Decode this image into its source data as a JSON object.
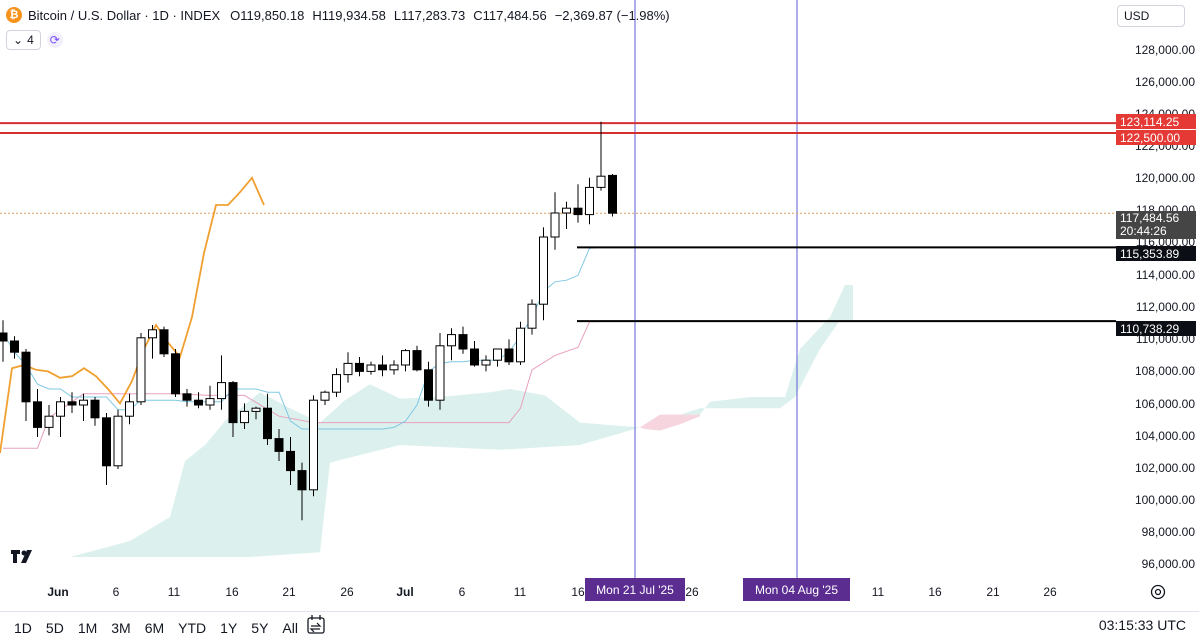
{
  "header": {
    "symbol": "Bitcoin / U.S. Dollar · 1D · INDEX",
    "open": "O119,850.18",
    "high": "H119,934.58",
    "low": "L117,283.73",
    "close": "C117,484.56",
    "change": "−2,369.87 (−1.98%)",
    "logo_char": "₿"
  },
  "indicators": {
    "count": "4",
    "chevron": "⌄"
  },
  "currency": "USD",
  "price_axis": {
    "labels": [
      "128,000.00",
      "126,000.00",
      "124,000.00",
      "122,000.00",
      "120,000.00",
      "118,000.00",
      "116,000.00",
      "114,000.00",
      "112,000.00",
      "110,000.00",
      "108,000.00",
      "106,000.00",
      "104,000.00",
      "102,000.00",
      "100,000.00",
      "98,000.00",
      "96,000.00"
    ],
    "tags": {
      "red_top": "123,114.25",
      "red_bottom": "122,500.00",
      "last_price": "117,484.56",
      "countdown": "20:44:26",
      "black_top": "115,353.89",
      "black_bottom": "110,738.29"
    }
  },
  "time_axis": {
    "labels": [
      "Jun",
      "6",
      "11",
      "16",
      "21",
      "26",
      "Jul",
      "6",
      "11",
      "16",
      "26",
      "11",
      "16",
      "21",
      "26"
    ],
    "bold": [
      "Jun",
      "Jul"
    ],
    "tag_1": "Mon 21 Jul '25",
    "tag_2": "Mon 04 Aug '25"
  },
  "bottom_bar": {
    "ranges": [
      "1D",
      "5D",
      "1M",
      "3M",
      "6M",
      "YTD",
      "1Y",
      "5Y",
      "All"
    ],
    "clock": "03:15:33 UTC"
  },
  "colors": {
    "up_candle": "#ffffff",
    "down_candle": "#000000",
    "red_lines": "#d32f2f",
    "orange_line": "#f0a030",
    "tenkan": "#7ec8e3",
    "kijun": "#e8a0c0",
    "cloud_green": "#d8efeb",
    "cloud_red": "#f6d5df",
    "vline": "#5b5bd6",
    "date_tag": "#5c2d91"
  },
  "chart_data": {
    "type": "candlestick",
    "ylim": [
      95000,
      130000
    ],
    "candles": [
      {
        "o": 110000,
        "h": 110800,
        "l": 108200,
        "c": 109500
      },
      {
        "o": 109500,
        "h": 109800,
        "l": 108400,
        "c": 108800
      },
      {
        "o": 108800,
        "h": 109000,
        "l": 104500,
        "c": 105700
      },
      {
        "o": 105700,
        "h": 106500,
        "l": 103500,
        "c": 104100
      },
      {
        "o": 104100,
        "h": 105500,
        "l": 103600,
        "c": 104800
      },
      {
        "o": 104800,
        "h": 106000,
        "l": 103500,
        "c": 105700
      },
      {
        "o": 105700,
        "h": 106300,
        "l": 105000,
        "c": 105500
      },
      {
        "o": 105500,
        "h": 106200,
        "l": 104500,
        "c": 105800
      },
      {
        "o": 105800,
        "h": 106000,
        "l": 104200,
        "c": 104700
      },
      {
        "o": 104700,
        "h": 105000,
        "l": 100500,
        "c": 101700
      },
      {
        "o": 101700,
        "h": 105200,
        "l": 101500,
        "c": 104800
      },
      {
        "o": 104800,
        "h": 106200,
        "l": 104300,
        "c": 105700
      },
      {
        "o": 105700,
        "h": 110000,
        "l": 105500,
        "c": 109700
      },
      {
        "o": 109700,
        "h": 110500,
        "l": 108400,
        "c": 110200
      },
      {
        "o": 110200,
        "h": 110400,
        "l": 108500,
        "c": 108700
      },
      {
        "o": 108700,
        "h": 109000,
        "l": 106000,
        "c": 106200
      },
      {
        "o": 106200,
        "h": 106500,
        "l": 105400,
        "c": 105800
      },
      {
        "o": 105800,
        "h": 106300,
        "l": 105300,
        "c": 105500
      },
      {
        "o": 105500,
        "h": 106700,
        "l": 105200,
        "c": 105900
      },
      {
        "o": 105900,
        "h": 108600,
        "l": 105200,
        "c": 106900
      },
      {
        "o": 106900,
        "h": 107000,
        "l": 103500,
        "c": 104400
      },
      {
        "o": 104400,
        "h": 105600,
        "l": 104000,
        "c": 105100
      },
      {
        "o": 105100,
        "h": 105400,
        "l": 104600,
        "c": 105300
      },
      {
        "o": 105300,
        "h": 106200,
        "l": 103000,
        "c": 103400
      },
      {
        "o": 103400,
        "h": 104000,
        "l": 102000,
        "c": 102600
      },
      {
        "o": 102600,
        "h": 103500,
        "l": 100500,
        "c": 101400
      },
      {
        "o": 101400,
        "h": 101900,
        "l": 98300,
        "c": 100200
      },
      {
        "o": 100200,
        "h": 106100,
        "l": 99800,
        "c": 105800
      },
      {
        "o": 105800,
        "h": 106400,
        "l": 105500,
        "c": 106300
      },
      {
        "o": 106300,
        "h": 107800,
        "l": 106000,
        "c": 107400
      },
      {
        "o": 107400,
        "h": 108800,
        "l": 106900,
        "c": 108100
      },
      {
        "o": 108100,
        "h": 108500,
        "l": 107300,
        "c": 107600
      },
      {
        "o": 107600,
        "h": 108200,
        "l": 107400,
        "c": 108000
      },
      {
        "o": 108000,
        "h": 108600,
        "l": 107300,
        "c": 107700
      },
      {
        "o": 107700,
        "h": 108300,
        "l": 107400,
        "c": 108000
      },
      {
        "o": 108000,
        "h": 109000,
        "l": 107600,
        "c": 108900
      },
      {
        "o": 108900,
        "h": 109200,
        "l": 107600,
        "c": 107700
      },
      {
        "o": 107700,
        "h": 108200,
        "l": 105400,
        "c": 105800
      },
      {
        "o": 105800,
        "h": 110000,
        "l": 105200,
        "c": 109200
      },
      {
        "o": 109200,
        "h": 110300,
        "l": 108300,
        "c": 109900
      },
      {
        "o": 109900,
        "h": 110400,
        "l": 108700,
        "c": 109000
      },
      {
        "o": 109000,
        "h": 109500,
        "l": 107900,
        "c": 108000
      },
      {
        "o": 108000,
        "h": 108600,
        "l": 107600,
        "c": 108300
      },
      {
        "o": 108300,
        "h": 109000,
        "l": 107900,
        "c": 109000
      },
      {
        "o": 109000,
        "h": 109600,
        "l": 108000,
        "c": 108200
      },
      {
        "o": 108200,
        "h": 110700,
        "l": 108000,
        "c": 110300
      },
      {
        "o": 110300,
        "h": 112100,
        "l": 109900,
        "c": 111800
      },
      {
        "o": 111800,
        "h": 116600,
        "l": 110800,
        "c": 116000
      },
      {
        "o": 116000,
        "h": 118800,
        "l": 115200,
        "c": 117500
      },
      {
        "o": 117500,
        "h": 118200,
        "l": 116500,
        "c": 117800
      },
      {
        "o": 117800,
        "h": 119300,
        "l": 116900,
        "c": 117400
      },
      {
        "o": 117400,
        "h": 119700,
        "l": 116800,
        "c": 119100
      },
      {
        "o": 119100,
        "h": 123200,
        "l": 118900,
        "c": 119800
      },
      {
        "o": 119850,
        "h": 119935,
        "l": 117284,
        "c": 117485
      }
    ],
    "horizontal_lines": [
      123114.25,
      122500,
      115353.89,
      110738.29
    ],
    "last_price": 117484.56,
    "orange_line": [
      {
        "i": 0,
        "v": 102500
      },
      {
        "i": 1,
        "v": 107800
      },
      {
        "i": 2,
        "v": 108000
      },
      {
        "i": 3,
        "v": 107700
      },
      {
        "i": 4,
        "v": 107600
      },
      {
        "i": 5,
        "v": 107200
      },
      {
        "i": 6,
        "v": 107300
      },
      {
        "i": 7,
        "v": 107800
      },
      {
        "i": 8,
        "v": 107300
      },
      {
        "i": 9,
        "v": 106500
      },
      {
        "i": 10,
        "v": 105600
      },
      {
        "i": 11,
        "v": 107000
      },
      {
        "i": 12,
        "v": 109000
      },
      {
        "i": 13,
        "v": 110500
      },
      {
        "i": 14,
        "v": 109400
      },
      {
        "i": 15,
        "v": 108500
      },
      {
        "i": 16,
        "v": 111000
      },
      {
        "i": 17,
        "v": 115000
      },
      {
        "i": 18,
        "v": 118000
      },
      {
        "i": 19,
        "v": 118000
      },
      {
        "i": 20,
        "v": 118800
      },
      {
        "i": 21,
        "v": 119700
      },
      {
        "i": 22,
        "v": 118000
      }
    ],
    "tenkan": [
      {
        "i": 0,
        "v": 110000
      },
      {
        "i": 1,
        "v": 108800
      },
      {
        "i": 2,
        "v": 108000
      },
      {
        "i": 3,
        "v": 106800
      },
      {
        "i": 4,
        "v": 106500
      },
      {
        "i": 5,
        "v": 106500
      },
      {
        "i": 6,
        "v": 106000
      },
      {
        "i": 7,
        "v": 106000
      },
      {
        "i": 8,
        "v": 106000
      },
      {
        "i": 9,
        "v": 106000
      },
      {
        "i": 10,
        "v": 105200
      },
      {
        "i": 11,
        "v": 105200
      },
      {
        "i": 12,
        "v": 105800
      },
      {
        "i": 13,
        "v": 105800
      },
      {
        "i": 14,
        "v": 105800
      },
      {
        "i": 15,
        "v": 105800
      },
      {
        "i": 16,
        "v": 105700
      },
      {
        "i": 17,
        "v": 105700
      },
      {
        "i": 18,
        "v": 105700
      },
      {
        "i": 19,
        "v": 105700
      },
      {
        "i": 20,
        "v": 106500
      },
      {
        "i": 21,
        "v": 106500
      },
      {
        "i": 22,
        "v": 106500
      },
      {
        "i": 23,
        "v": 106300
      },
      {
        "i": 24,
        "v": 106300
      },
      {
        "i": 25,
        "v": 104500
      },
      {
        "i": 26,
        "v": 104000
      },
      {
        "i": 27,
        "v": 104000
      },
      {
        "i": 28,
        "v": 104000
      },
      {
        "i": 29,
        "v": 104000
      },
      {
        "i": 30,
        "v": 104000
      },
      {
        "i": 31,
        "v": 104000
      },
      {
        "i": 32,
        "v": 104000
      },
      {
        "i": 33,
        "v": 104000
      },
      {
        "i": 34,
        "v": 104100
      },
      {
        "i": 35,
        "v": 104500
      },
      {
        "i": 36,
        "v": 105500
      },
      {
        "i": 37,
        "v": 107600
      },
      {
        "i": 38,
        "v": 108100
      },
      {
        "i": 39,
        "v": 108200
      },
      {
        "i": 40,
        "v": 108200
      },
      {
        "i": 41,
        "v": 108300
      },
      {
        "i": 42,
        "v": 108300
      },
      {
        "i": 43,
        "v": 108300
      },
      {
        "i": 44,
        "v": 108800
      },
      {
        "i": 45,
        "v": 109800
      },
      {
        "i": 46,
        "v": 111000
      },
      {
        "i": 47,
        "v": 112600
      },
      {
        "i": 48,
        "v": 113200
      },
      {
        "i": 49,
        "v": 113300
      },
      {
        "i": 50,
        "v": 113600
      },
      {
        "i": 51,
        "v": 115300
      },
      {
        "i": 52,
        "v": 115354
      },
      {
        "i": 53,
        "v": 115354
      }
    ],
    "kijun": [
      {
        "i": 0,
        "v": 102800
      },
      {
        "i": 3,
        "v": 102800
      },
      {
        "i": 4,
        "v": 104700
      },
      {
        "i": 7,
        "v": 106200
      },
      {
        "i": 15,
        "v": 106200
      },
      {
        "i": 18,
        "v": 106100
      },
      {
        "i": 21,
        "v": 106100
      },
      {
        "i": 24,
        "v": 104800
      },
      {
        "i": 27,
        "v": 104400
      },
      {
        "i": 44,
        "v": 104400
      },
      {
        "i": 45,
        "v": 105300
      },
      {
        "i": 46,
        "v": 107700
      },
      {
        "i": 48,
        "v": 108600
      },
      {
        "i": 50,
        "v": 109100
      },
      {
        "i": 51,
        "v": 110700
      },
      {
        "i": 53,
        "v": 110738
      }
    ],
    "cloud_upper": [
      {
        "x": 70,
        "v": 96000
      },
      {
        "x": 100,
        "v": 96500
      },
      {
        "x": 130,
        "v": 97000
      },
      {
        "x": 170,
        "v": 98500
      },
      {
        "x": 185,
        "v": 102000
      },
      {
        "x": 205,
        "v": 103000
      },
      {
        "x": 225,
        "v": 104500
      },
      {
        "x": 260,
        "v": 106300
      },
      {
        "x": 290,
        "v": 105300
      },
      {
        "x": 320,
        "v": 104400
      },
      {
        "x": 345,
        "v": 105800
      },
      {
        "x": 370,
        "v": 106800
      },
      {
        "x": 400,
        "v": 105900
      },
      {
        "x": 440,
        "v": 106000
      },
      {
        "x": 490,
        "v": 106300
      },
      {
        "x": 510,
        "v": 106500
      },
      {
        "x": 545,
        "v": 106100
      },
      {
        "x": 580,
        "v": 104400
      },
      {
        "x": 640,
        "v": 104100
      },
      {
        "x": 660,
        "v": 104900
      },
      {
        "x": 700,
        "v": 104900
      },
      {
        "x": 710,
        "v": 105700
      },
      {
        "x": 750,
        "v": 106000
      },
      {
        "x": 785,
        "v": 106000
      },
      {
        "x": 800,
        "v": 109000
      },
      {
        "x": 830,
        "v": 111000
      },
      {
        "x": 845,
        "v": 113000
      },
      {
        "x": 853,
        "v": 113000
      }
    ],
    "cloud_lower": [
      {
        "x": 853,
        "v": 110800
      },
      {
        "x": 840,
        "v": 110800
      },
      {
        "x": 820,
        "v": 109000
      },
      {
        "x": 795,
        "v": 106000
      },
      {
        "x": 780,
        "v": 105300
      },
      {
        "x": 700,
        "v": 105300
      },
      {
        "x": 680,
        "v": 104900
      },
      {
        "x": 640,
        "v": 104100
      },
      {
        "x": 580,
        "v": 103000
      },
      {
        "x": 500,
        "v": 102700
      },
      {
        "x": 400,
        "v": 103000
      },
      {
        "x": 330,
        "v": 101900
      },
      {
        "x": 320,
        "v": 96300
      },
      {
        "x": 250,
        "v": 96000
      },
      {
        "x": 70,
        "v": 96000
      }
    ],
    "red_cloud": [
      {
        "x": 640,
        "v": 104100
      },
      {
        "x": 660,
        "v": 104900
      },
      {
        "x": 700,
        "v": 104900
      },
      {
        "x": 700,
        "v": 104800
      },
      {
        "x": 680,
        "v": 104300
      },
      {
        "x": 660,
        "v": 103900
      },
      {
        "x": 645,
        "v": 104000
      }
    ]
  }
}
